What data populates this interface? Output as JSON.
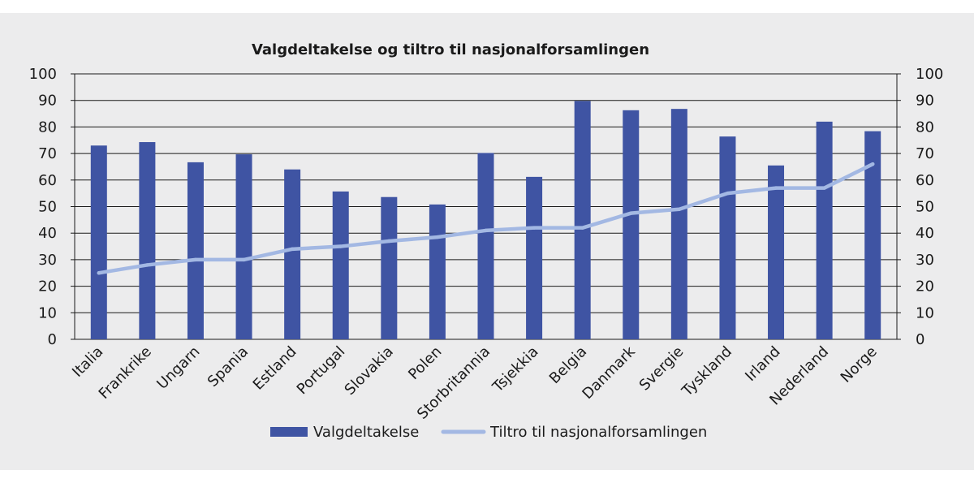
{
  "chart_data": {
    "type": "bar",
    "title": "Valgdeltakelse og tiltro til nasjonalforsamlingen",
    "xlabel": "",
    "ylabel": "",
    "ylim": [
      0,
      100
    ],
    "y2lim": [
      0,
      100
    ],
    "yticks": [
      "0",
      "10",
      "20",
      "30",
      "40",
      "50",
      "60",
      "70",
      "80",
      "90",
      "100"
    ],
    "grid": true,
    "legend_position": "bottom",
    "categories": [
      "Italia",
      "Frankrike",
      "Ungarn",
      "Spania",
      "Estland",
      "Portugal",
      "Slovakia",
      "Polen",
      "Storbritannia",
      "Tsjekkia",
      "Belgia",
      "Danmark",
      "Svergie",
      "Tyskland",
      "Irland",
      "Nederland",
      "Norge"
    ],
    "series": [
      {
        "name": "Valgdeltakelse",
        "type": "bar",
        "axis": "left",
        "color": "#3f54a3",
        "values": [
          73,
          74.3,
          66.7,
          69.7,
          64,
          55.7,
          53.6,
          50.8,
          70.2,
          61.2,
          89.8,
          86.3,
          86.8,
          76.4,
          65.5,
          82,
          78.4
        ]
      },
      {
        "name": "Tiltro til nasjonalforsamlingen",
        "type": "line",
        "axis": "right",
        "color": "#a3b8e3",
        "values": [
          25,
          28,
          30,
          30,
          34,
          35,
          37,
          38.5,
          41,
          42,
          42,
          47.5,
          49,
          55,
          57,
          57,
          66
        ]
      }
    ]
  }
}
